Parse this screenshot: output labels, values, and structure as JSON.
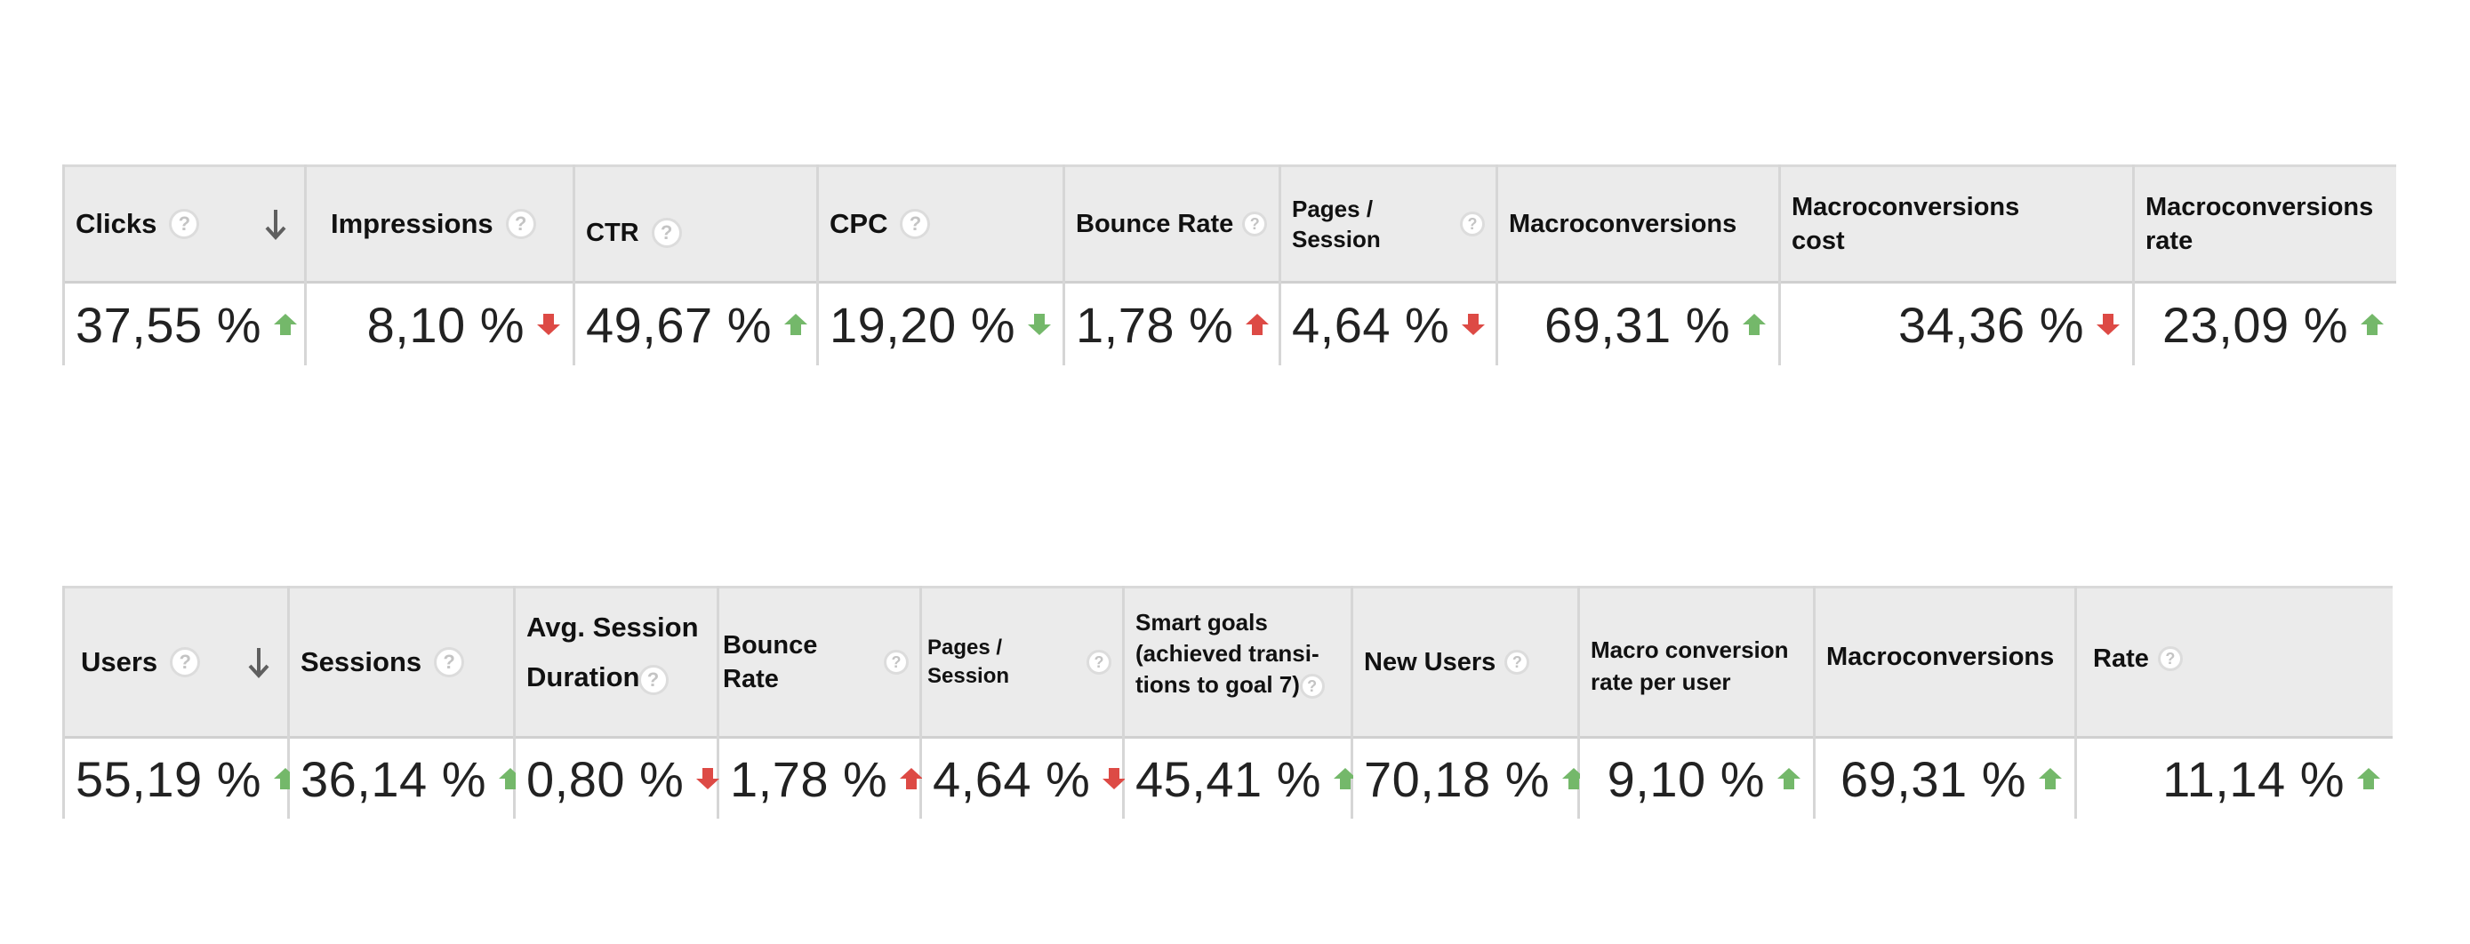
{
  "tables": [
    {
      "columns": [
        {
          "label": "Clicks",
          "help": "?",
          "sort_icon": "arrow-down-icon",
          "value": "37,55 %",
          "trend": "up",
          "trend_color": "#74b86a"
        },
        {
          "label": "Impressions",
          "help": "?",
          "value": "8,10 %",
          "trend": "down",
          "trend_color": "#dd4a45"
        },
        {
          "label": "CTR",
          "help": "?",
          "value": "49,67 %",
          "trend": "up",
          "trend_color": "#74b86a"
        },
        {
          "label": "CPC",
          "help": "?",
          "value": "19,20 %",
          "trend": "down",
          "trend_color": "#74b86a"
        },
        {
          "label": "Bounce Rate",
          "help": "?",
          "value": "1,78 %",
          "trend": "up",
          "trend_color": "#dd4a45"
        },
        {
          "label": "Pages / Session",
          "help": "?",
          "value": "4,64 %",
          "trend": "down",
          "trend_color": "#dd4a45"
        },
        {
          "label": "Macroconversions",
          "value": "69,31 %",
          "trend": "up",
          "trend_color": "#74b86a"
        },
        {
          "label": "Macroconversions\ncost",
          "value": "34,36 %",
          "trend": "down",
          "trend_color": "#dd4a45"
        },
        {
          "label": "Macroconversions\nrate",
          "value": "23,09 %",
          "trend": "up",
          "trend_color": "#74b86a"
        }
      ]
    },
    {
      "columns": [
        {
          "label": "Users",
          "help": "?",
          "sort_icon": "arrow-down-icon",
          "value": "55,19 %",
          "trend": "up",
          "trend_color": "#74b86a"
        },
        {
          "label": "Sessions",
          "help": "?",
          "value": "36,14 %",
          "trend": "up",
          "trend_color": "#74b86a"
        },
        {
          "label": "Avg. Session\nDuration",
          "help": "?",
          "value": "0,80 %",
          "trend": "down",
          "trend_color": "#dd4a45"
        },
        {
          "label": "Bounce Rate",
          "help": "?",
          "value": "1,78 %",
          "trend": "up",
          "trend_color": "#dd4a45"
        },
        {
          "label": "Pages / Session",
          "help": "?",
          "value": "4,64 %",
          "trend": "down",
          "trend_color": "#dd4a45"
        },
        {
          "label": "Smart goals\n(achieved transi-\ntions to goal 7)",
          "help": "?",
          "value": "45,41 %",
          "trend": "up",
          "trend_color": "#74b86a"
        },
        {
          "label": "New Users",
          "help": "?",
          "value": "70,18 %",
          "trend": "up",
          "trend_color": "#74b86a"
        },
        {
          "label": "Macro conversion\nrate per user",
          "value": "9,10 %",
          "trend": "up",
          "trend_color": "#74b86a"
        },
        {
          "label": "Macroconversions",
          "value": "69,31 %",
          "trend": "up",
          "trend_color": "#74b86a"
        },
        {
          "label": "Rate",
          "help": "?",
          "value": "11,14 %",
          "trend": "up",
          "trend_color": "#74b86a"
        }
      ]
    }
  ],
  "icons": {
    "help": "question-circle-icon",
    "trend_up": "arrow-up-icon",
    "trend_down": "arrow-down-icon"
  }
}
